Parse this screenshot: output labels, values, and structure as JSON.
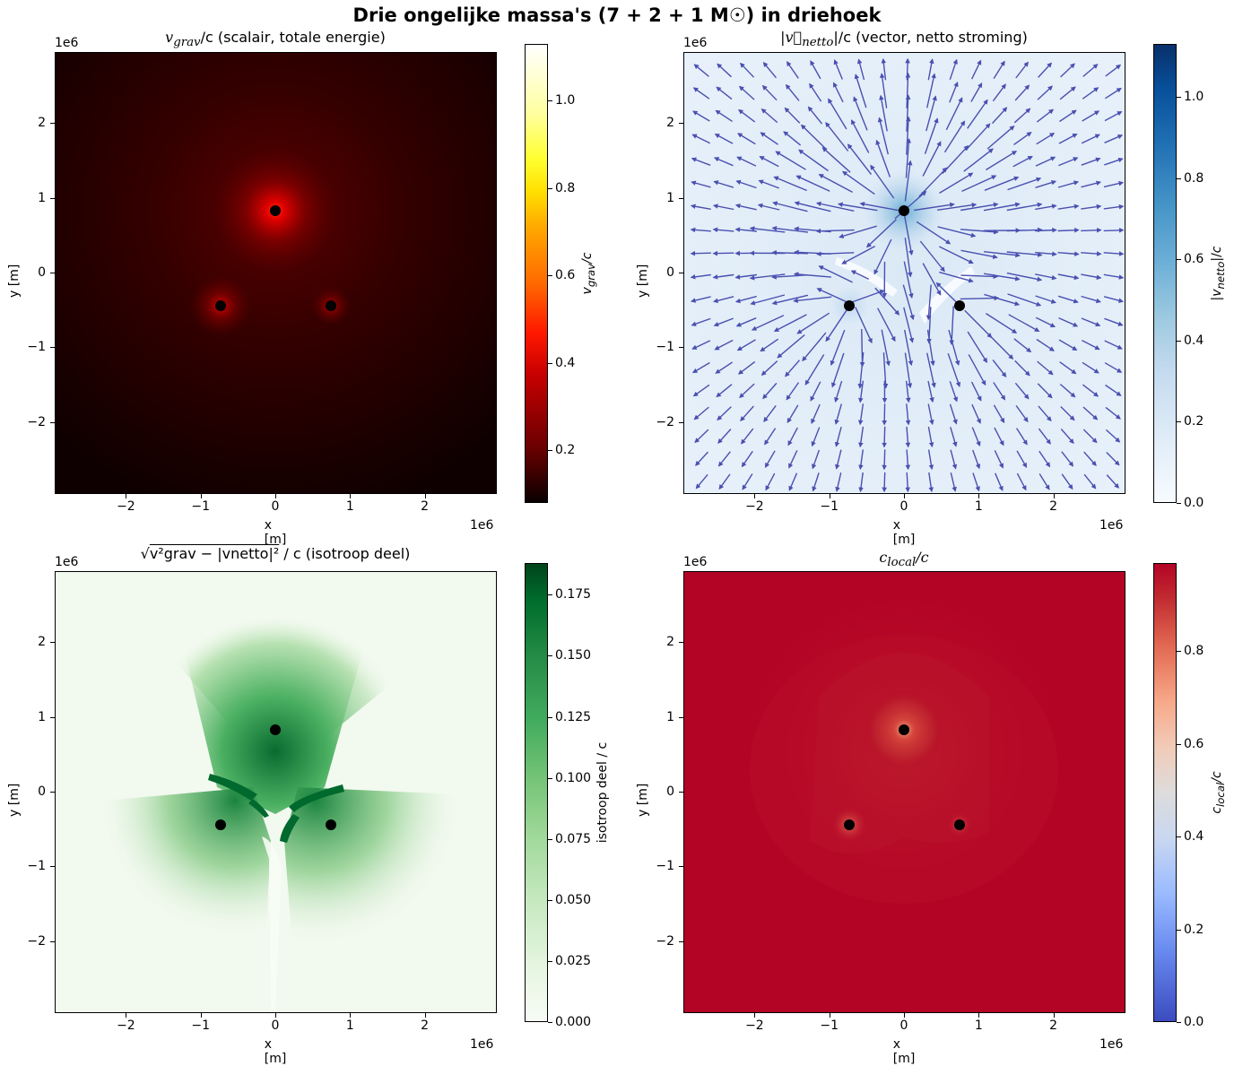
{
  "figure": {
    "suptitle": "Drie ongelijke massa's (7 + 2 + 1 M☉) in driehoek"
  },
  "common_axes": {
    "xlabel": "x [m]",
    "ylabel": "y [m]",
    "offset_text": "1e6",
    "x_ticks": [
      "−2",
      "−1",
      "0",
      "1",
      "2"
    ],
    "y_ticks": [
      "2",
      "1",
      "0",
      "−1",
      "−2"
    ]
  },
  "panels": [
    {
      "title": "v_grav/c (scalair, totale energie)",
      "title_main": "v",
      "title_sub": "grav",
      "title_rest": "/c (scalair, totale energie)",
      "colorbar_label": "v_grav/c",
      "colorbar_ticks": [
        "1.0",
        "0.8",
        "0.6",
        "0.4",
        "0.2"
      ],
      "colormap": "hot"
    },
    {
      "title": "|v⃗_netto|/c (vector, netto stroming)",
      "title_main": "|v⃗",
      "title_sub": "netto",
      "title_rest": "|/c (vector, netto stroming)",
      "colorbar_label": "|v_netto|/c",
      "colorbar_ticks": [
        "1.0",
        "0.8",
        "0.6",
        "0.4",
        "0.2",
        "0.0"
      ],
      "colormap": "Blues",
      "quiver_color": "#4a50b0"
    },
    {
      "title": "√(v_grav² − |v_netto|²) / c (isotroop deel)",
      "title_sqrt_part": "v²grav − |vnetto|²",
      "title_rest": " / c (isotroop deel)",
      "colorbar_label": "isotroop deel / c",
      "colorbar_ticks": [
        "0.175",
        "0.150",
        "0.125",
        "0.100",
        "0.075",
        "0.050",
        "0.025",
        "0.000"
      ],
      "colormap": "Greens"
    },
    {
      "title": "c_local/c",
      "title_main": "c",
      "title_sub": "local",
      "title_rest": "/c",
      "colorbar_label": "c_local/c",
      "colorbar_ticks": [
        "0.8",
        "0.6",
        "0.4",
        "0.2",
        "0.0"
      ],
      "colormap": "coolwarm"
    }
  ],
  "chart_data": [
    {
      "type": "heatmap",
      "title": "v_grav/c (scalair, totale energie)",
      "xlabel": "x [m]",
      "ylabel": "y [m]",
      "x_range": [
        -2950000.0,
        2950000.0
      ],
      "y_range": [
        -2950000.0,
        2950000.0
      ],
      "x_tick_values": [
        -2000000.0,
        -1000000.0,
        0,
        1000000.0,
        2000000.0
      ],
      "y_tick_values": [
        -2000000.0,
        -1000000.0,
        0,
        1000000.0,
        2000000.0
      ],
      "colormap": "hot",
      "colorbar": {
        "label": "v_grav/c",
        "range": [
          0.08,
          1.13
        ],
        "ticks": [
          0.2,
          0.4,
          0.6,
          0.8,
          1.0
        ]
      },
      "masses": [
        {
          "label": "7 M☉",
          "x": 0.0,
          "y": 850000.0
        },
        {
          "label": "2 M☉",
          "x": -730000.0,
          "y": -420000.0
        },
        {
          "label": "1 M☉",
          "x": 730000.0,
          "y": -420000.0
        }
      ],
      "background_value_approx": 0.12,
      "peak_near_masses": 0.45
    },
    {
      "type": "heatmap",
      "title": "|v_netto|/c (vector, netto stroming)",
      "xlabel": "x [m]",
      "ylabel": "y [m]",
      "x_range": [
        -2950000.0,
        2950000.0
      ],
      "y_range": [
        -2950000.0,
        2950000.0
      ],
      "colormap": "Blues",
      "colorbar": {
        "label": "|v_netto|/c",
        "range": [
          0.0,
          1.13
        ],
        "ticks": [
          0.0,
          0.2,
          0.4,
          0.6,
          0.8,
          1.0
        ]
      },
      "overlay": "quiver",
      "quiver_grid": {
        "nx": 19,
        "ny": 19,
        "direction": "outward radial from mass centroid",
        "color": "#4a50b0"
      },
      "masses": [
        {
          "label": "7 M☉",
          "x": 0.0,
          "y": 850000.0
        },
        {
          "label": "2 M☉",
          "x": -730000.0,
          "y": -420000.0
        },
        {
          "label": "1 M☉",
          "x": 730000.0,
          "y": -420000.0
        }
      ],
      "background_value_approx": 0.08
    },
    {
      "type": "heatmap",
      "title": "sqrt(v_grav^2 - |v_netto|^2) / c (isotroop deel)",
      "xlabel": "x [m]",
      "ylabel": "y [m]",
      "x_range": [
        -2950000.0,
        2950000.0
      ],
      "y_range": [
        -2950000.0,
        2950000.0
      ],
      "colormap": "Greens",
      "colorbar": {
        "label": "isotroop deel / c",
        "range": [
          0.0,
          0.188
        ],
        "ticks": [
          0.0,
          0.025,
          0.05,
          0.075,
          0.1,
          0.125,
          0.15,
          0.175
        ]
      },
      "masses": [
        {
          "label": "7 M☉",
          "x": 0.0,
          "y": 850000.0
        },
        {
          "label": "2 M☉",
          "x": -730000.0,
          "y": -420000.0
        },
        {
          "label": "1 M☉",
          "x": 730000.0,
          "y": -420000.0
        }
      ],
      "peak_value_approx": 0.185
    },
    {
      "type": "heatmap",
      "title": "c_local/c",
      "xlabel": "x [m]",
      "ylabel": "y [m]",
      "x_range": [
        -2950000.0,
        2950000.0
      ],
      "y_range": [
        -2950000.0,
        2950000.0
      ],
      "colormap": "coolwarm",
      "colorbar": {
        "label": "c_local/c",
        "range": [
          0.0,
          0.99
        ],
        "ticks": [
          0.0,
          0.2,
          0.4,
          0.6,
          0.8
        ]
      },
      "masses": [
        {
          "label": "7 M☉",
          "x": 0.0,
          "y": 850000.0
        },
        {
          "label": "2 M☉",
          "x": -730000.0,
          "y": -420000.0
        },
        {
          "label": "1 M☉",
          "x": 730000.0,
          "y": -420000.0
        }
      ],
      "background_value_approx": 0.99,
      "min_near_masses": 0.8
    }
  ]
}
